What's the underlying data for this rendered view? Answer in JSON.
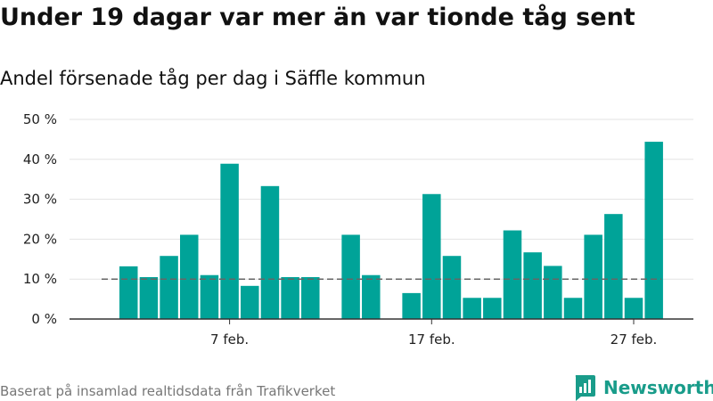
{
  "header": {
    "title": "Under 19 dagar var mer än var tionde tåg sent",
    "subtitle": "Andel försenade tåg per dag i Säffle kommun"
  },
  "footer": {
    "source": "Baserat på insamlad realtidsdata från Trafikverket",
    "brand": "Newsworthy"
  },
  "colors": {
    "bar": "#00a398",
    "grid": "#e3e3e3",
    "reference": "#666666",
    "brand": "#199c8a"
  },
  "chart_data": {
    "type": "bar",
    "x_start": "2. feb.",
    "dates": [
      "2 feb",
      "3 feb",
      "4 feb",
      "5 feb",
      "6 feb",
      "7 feb",
      "8 feb",
      "9 feb",
      "10 feb",
      "11 feb",
      "12 feb",
      "13 feb",
      "14 feb",
      "15 feb",
      "16 feb",
      "17 feb",
      "18 feb",
      "19 feb",
      "20 feb",
      "21 feb",
      "22 feb",
      "23 feb",
      "24 feb",
      "25 feb",
      "26 feb",
      "27 feb",
      "28 feb"
    ],
    "values": [
      13.2,
      10.5,
      15.8,
      21.1,
      11.0,
      38.9,
      8.3,
      33.3,
      10.5,
      10.5,
      null,
      21.1,
      11.0,
      null,
      6.5,
      31.3,
      15.8,
      5.3,
      5.3,
      22.2,
      16.7,
      13.3,
      5.3,
      21.1,
      26.3,
      5.3,
      44.4
    ],
    "x_ticks": [
      {
        "date": "7 feb",
        "label": "7 feb."
      },
      {
        "date": "17 feb",
        "label": "17 feb."
      },
      {
        "date": "27 feb",
        "label": "27 feb."
      }
    ],
    "y_ticks": [
      {
        "value": 0,
        "label": "0 %"
      },
      {
        "value": 10,
        "label": "10 %"
      },
      {
        "value": 20,
        "label": "20 %"
      },
      {
        "value": 30,
        "label": "30 %"
      },
      {
        "value": 40,
        "label": "40 %"
      },
      {
        "value": 50,
        "label": "50 %"
      }
    ],
    "ylim": [
      0,
      50
    ],
    "reference_line": 10,
    "grid": true,
    "xlabel": "",
    "ylabel": ""
  }
}
